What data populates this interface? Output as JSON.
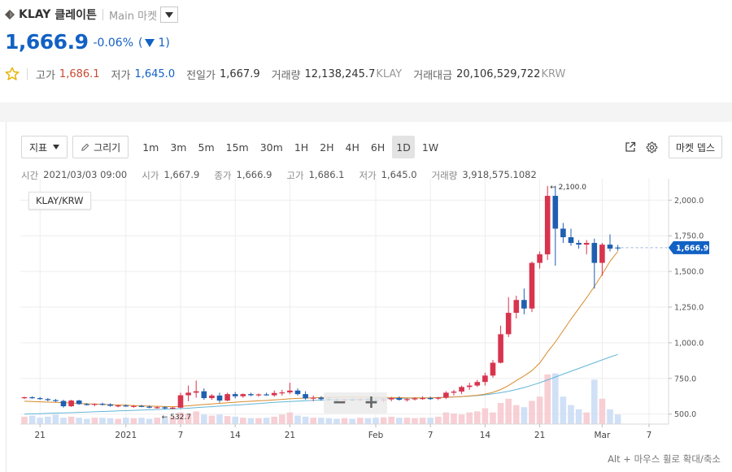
{
  "header": {
    "symbol": "KLAY",
    "name": "클레이튼",
    "market": "Main 마켓",
    "price": "1,666.9",
    "change_pct": "-0.06%",
    "change_abs": "1",
    "stats": [
      {
        "label": "고가",
        "value": "1,686.1",
        "unit": "",
        "tone": "red"
      },
      {
        "label": "저가",
        "value": "1,645.0",
        "unit": "",
        "tone": "blue"
      },
      {
        "label": "전일가",
        "value": "1,667.9",
        "unit": "",
        "tone": ""
      },
      {
        "label": "거래량",
        "value": "12,138,245.7",
        "unit": "KLAY",
        "tone": ""
      },
      {
        "label": "거래대금",
        "value": "20,106,529,722",
        "unit": "KRW",
        "tone": ""
      }
    ]
  },
  "toolbar": {
    "indicator_label": "지표",
    "draw_label": "그리기",
    "intervals": [
      "1m",
      "3m",
      "5m",
      "15m",
      "30m",
      "1H",
      "2H",
      "4H",
      "6H",
      "1D",
      "1W"
    ],
    "active_interval": "1D",
    "depth_label": "마켓 뎁스"
  },
  "ohlc_bar": [
    {
      "k": "시간",
      "v": "2021/03/03 09:00"
    },
    {
      "k": "시가",
      "v": "1,667.9"
    },
    {
      "k": "종가",
      "v": "1,666.9"
    },
    {
      "k": "고가",
      "v": "1,686.1"
    },
    {
      "k": "저가",
      "v": "1,645.0"
    },
    {
      "k": "거래량",
      "v": "3,918,575.1082"
    }
  ],
  "pair_label": "KLAY/KRW",
  "hint": "Alt + 마우스 휠로 확대/축소",
  "colors": {
    "up": "#d8344e",
    "down": "#1f5fb0",
    "ma_long": "#d98a2c",
    "ma_short": "#63b6d8",
    "price_tag": "#1261c4"
  },
  "chart_data": {
    "type": "candlestick",
    "title": "KLAY/KRW",
    "ylim": [
      430,
      2150
    ],
    "y_ticks": [
      500.0,
      750.0,
      1000.0,
      1250.0,
      1500.0,
      1750.0,
      2000.0
    ],
    "y_tick_labels": [
      "500.0",
      "750.0",
      "1,000.0",
      "1,250.0",
      "1,500.0",
      "1,750.0",
      "2,000.0"
    ],
    "x_tick_labels": [
      {
        "label": "21",
        "i": 2
      },
      {
        "label": "2021",
        "i": 13
      },
      {
        "label": "7",
        "i": 20
      },
      {
        "label": "14",
        "i": 27
      },
      {
        "label": "21",
        "i": 34
      },
      {
        "label": "Feb",
        "i": 45
      },
      {
        "label": "7",
        "i": 52
      },
      {
        "label": "14",
        "i": 59
      },
      {
        "label": "21",
        "i": 66
      },
      {
        "label": "Mar",
        "i": 74
      },
      {
        "label": "7",
        "i": 80
      }
    ],
    "last_price_label": "1,666.9",
    "high_marker": "2,100.0",
    "low_marker": "532.7",
    "candles": [
      [
        615,
        622,
        605,
        618
      ],
      [
        618,
        625,
        608,
        612
      ],
      [
        612,
        620,
        600,
        605
      ],
      [
        605,
        612,
        590,
        598
      ],
      [
        598,
        606,
        585,
        592
      ],
      [
        592,
        600,
        545,
        555
      ],
      [
        555,
        600,
        550,
        595
      ],
      [
        595,
        600,
        565,
        570
      ],
      [
        570,
        578,
        560,
        565
      ],
      [
        565,
        575,
        555,
        572
      ],
      [
        572,
        580,
        560,
        568
      ],
      [
        568,
        575,
        552,
        558
      ],
      [
        558,
        566,
        548,
        560
      ],
      [
        560,
        568,
        552,
        555
      ],
      [
        555,
        563,
        545,
        557
      ],
      [
        557,
        565,
        548,
        552
      ],
      [
        552,
        560,
        540,
        545
      ],
      [
        545,
        555,
        538,
        548
      ],
      [
        548,
        555,
        532,
        540
      ],
      [
        540,
        550,
        533,
        545
      ],
      [
        545,
        650,
        540,
        632
      ],
      [
        632,
        700,
        590,
        650
      ],
      [
        650,
        735,
        615,
        660
      ],
      [
        660,
        680,
        600,
        612
      ],
      [
        612,
        640,
        600,
        630
      ],
      [
        630,
        650,
        580,
        595
      ],
      [
        595,
        650,
        590,
        640
      ],
      [
        640,
        655,
        610,
        625
      ],
      [
        625,
        645,
        615,
        640
      ],
      [
        640,
        650,
        625,
        632
      ],
      [
        632,
        645,
        622,
        638
      ],
      [
        638,
        650,
        628,
        632
      ],
      [
        632,
        665,
        622,
        648
      ],
      [
        648,
        670,
        630,
        652
      ],
      [
        652,
        720,
        640,
        665
      ],
      [
        665,
        680,
        630,
        640
      ],
      [
        640,
        660,
        600,
        610
      ],
      [
        610,
        630,
        590,
        615
      ],
      [
        615,
        625,
        595,
        605
      ],
      [
        605,
        618,
        592,
        600
      ],
      [
        600,
        612,
        585,
        595
      ],
      [
        595,
        608,
        580,
        602
      ],
      [
        602,
        612,
        590,
        597
      ],
      [
        597,
        610,
        588,
        605
      ],
      [
        605,
        612,
        592,
        598
      ],
      [
        598,
        610,
        585,
        595
      ],
      [
        595,
        610,
        580,
        603
      ],
      [
        603,
        620,
        590,
        612
      ],
      [
        612,
        625,
        595,
        600
      ],
      [
        600,
        612,
        588,
        605
      ],
      [
        605,
        618,
        595,
        610
      ],
      [
        610,
        625,
        600,
        612
      ],
      [
        612,
        622,
        600,
        608
      ],
      [
        608,
        620,
        598,
        615
      ],
      [
        615,
        660,
        605,
        650
      ],
      [
        650,
        670,
        630,
        658
      ],
      [
        658,
        700,
        640,
        690
      ],
      [
        690,
        720,
        670,
        700
      ],
      [
        700,
        740,
        690,
        725
      ],
      [
        725,
        790,
        700,
        770
      ],
      [
        770,
        880,
        755,
        860
      ],
      [
        860,
        1120,
        855,
        1060
      ],
      [
        1060,
        1320,
        1040,
        1210
      ],
      [
        1210,
        1330,
        1170,
        1300
      ],
      [
        1300,
        1380,
        1200,
        1240
      ],
      [
        1240,
        1570,
        1215,
        1560
      ],
      [
        1560,
        1640,
        1520,
        1620
      ],
      [
        1620,
        2100,
        1580,
        2030
      ],
      [
        2030,
        2100,
        1540,
        1800
      ],
      [
        1800,
        1840,
        1700,
        1740
      ],
      [
        1740,
        1800,
        1680,
        1700
      ],
      [
        1700,
        1720,
        1660,
        1688
      ],
      [
        1688,
        1720,
        1620,
        1700
      ],
      [
        1700,
        1730,
        1380,
        1560
      ],
      [
        1560,
        1700,
        1470,
        1688
      ],
      [
        1688,
        1760,
        1640,
        1660
      ],
      [
        1667.9,
        1686.1,
        1645.0,
        1666.9
      ]
    ],
    "volume": [
      0.35,
      0.4,
      0.3,
      0.35,
      0.45,
      0.3,
      0.35,
      0.3,
      0.25,
      0.3,
      0.3,
      0.28,
      0.25,
      0.3,
      0.28,
      0.3,
      0.25,
      0.3,
      0.3,
      0.35,
      0.55,
      0.5,
      0.6,
      0.45,
      0.4,
      0.45,
      0.38,
      0.35,
      0.3,
      0.28,
      0.28,
      0.3,
      0.35,
      0.45,
      0.55,
      0.4,
      0.35,
      0.3,
      0.3,
      0.28,
      0.25,
      0.28,
      0.25,
      0.3,
      0.28,
      0.3,
      0.32,
      0.35,
      0.3,
      0.3,
      0.28,
      0.3,
      0.3,
      0.35,
      0.55,
      0.5,
      0.45,
      0.55,
      0.6,
      0.75,
      0.55,
      1.0,
      1.2,
      0.9,
      0.8,
      1.1,
      1.3,
      2.35,
      2.4,
      1.3,
      0.9,
      0.7,
      0.55,
      2.1,
      1.2,
      0.7,
      0.45
    ],
    "ma_long": [
      590,
      588,
      586,
      584,
      582,
      580,
      578,
      575,
      572,
      570,
      568,
      566,
      564,
      562,
      560,
      558,
      556,
      555,
      553,
      552,
      554,
      558,
      563,
      567,
      571,
      575,
      579,
      583,
      587,
      590,
      593,
      596,
      600,
      603,
      607,
      610,
      612,
      614,
      616,
      617,
      618,
      619,
      619,
      619,
      618,
      617,
      616,
      616,
      615,
      614,
      614,
      614,
      614,
      615,
      617,
      620,
      623,
      627,
      632,
      640,
      652,
      672,
      700,
      735,
      768,
      805,
      858,
      935,
      1005,
      1085,
      1165,
      1240,
      1315,
      1395,
      1480,
      1570,
      1640
    ],
    "ma_short": [
      500,
      502,
      503,
      505,
      507,
      508,
      510,
      512,
      514,
      516,
      518,
      520,
      522,
      524,
      526,
      528,
      530,
      532,
      534,
      536,
      538,
      541,
      545,
      549,
      552,
      556,
      560,
      563,
      566,
      570,
      574,
      578,
      582,
      585,
      588,
      591,
      594,
      596,
      598,
      600,
      602,
      603,
      604,
      605,
      606,
      607,
      608,
      609,
      610,
      611,
      612,
      613,
      614,
      616,
      618,
      620,
      623,
      626,
      630,
      635,
      642,
      650,
      660,
      672,
      686,
      702,
      720,
      740,
      760,
      780,
      800,
      820,
      840,
      860,
      880,
      900,
      918
    ]
  }
}
